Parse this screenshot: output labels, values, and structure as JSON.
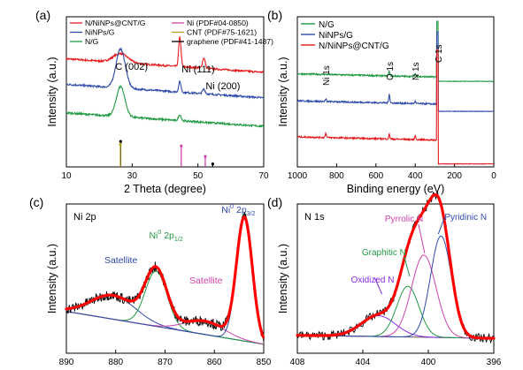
{
  "chart_data": [
    {
      "panel": "(a)",
      "type": "line",
      "xlabel": "2 Theta (degree)",
      "ylabel": "Intensity (a.u.)",
      "xlim": [
        10,
        70
      ],
      "xticks": [
        "10",
        "30",
        "50",
        "70"
      ],
      "legend": [
        {
          "name": "N/NiNPs@CNT/G",
          "color": "#e41a1c",
          "style": "line"
        },
        {
          "name": "Ni (PDF#04-0850)",
          "color": "#cc44aa",
          "style": "line"
        },
        {
          "name": "NiNPs/G",
          "color": "#2e4aa8",
          "style": "line"
        },
        {
          "name": "CNT (PDF#75-1621)",
          "color": "#b8a020",
          "style": "line"
        },
        {
          "name": "N/G",
          "color": "#229944",
          "style": "line"
        },
        {
          "name": "graphene (PDF#41-1487)",
          "color": "#000000",
          "style": "line"
        }
      ],
      "annotations": [
        {
          "text": "C (002)",
          "x": 26.5
        },
        {
          "text": "Ni (111)",
          "x": 44.5
        },
        {
          "text": "Ni (200)",
          "x": 51.8
        }
      ],
      "series": [
        {
          "name": "N/NiNPs@CNT/G",
          "color": "#e41a1c",
          "baseline": 0.72,
          "peaks": [
            [
              26.5,
              0.06,
              2.2
            ],
            [
              44.5,
              0.2,
              0.35
            ],
            [
              51.8,
              0.07,
              0.4
            ]
          ]
        },
        {
          "name": "NiNPs/G",
          "color": "#2e4aa8",
          "baseline": 0.55,
          "peaks": [
            [
              26.5,
              0.26,
              1.4
            ],
            [
              44.5,
              0.07,
              0.35
            ],
            [
              51.8,
              0.03,
              0.4
            ]
          ]
        },
        {
          "name": "N/G",
          "color": "#229944",
          "baseline": 0.36,
          "peaks": [
            [
              26.5,
              0.2,
              1.3
            ],
            [
              44.5,
              0.04,
              0.4
            ]
          ]
        }
      ],
      "reference_sticks": [
        {
          "name": "graphene (PDF#41-1487)",
          "color": "#000000",
          "x": [
            26.5,
            54.5
          ],
          "h": [
            0.17,
            0.02
          ]
        },
        {
          "name": "CNT (PDF#75-1621)",
          "color": "#b8a020",
          "x": [
            26.2
          ],
          "h": [
            0.15
          ]
        },
        {
          "name": "Ni (PDF#04-0850)",
          "color": "#cc44aa",
          "x": [
            44.5,
            51.8
          ],
          "h": [
            0.14,
            0.07
          ]
        }
      ]
    },
    {
      "panel": "(b)",
      "type": "line",
      "xlabel": "Binding energy (eV)",
      "ylabel": "Intensity (a.u.)",
      "xlim": [
        1000,
        0
      ],
      "xticks": [
        "1000",
        "800",
        "600",
        "400",
        "200",
        "0"
      ],
      "legend": [
        {
          "name": "N/G",
          "color": "#229944"
        },
        {
          "name": "NiNPs/G",
          "color": "#2e4aa8"
        },
        {
          "name": "N/NiNPs@CNT/G",
          "color": "#e41a1c"
        }
      ],
      "annotations": [
        {
          "text": "Ni 1s",
          "x": 855
        },
        {
          "text": "O 1s",
          "x": 532
        },
        {
          "text": "N 1s",
          "x": 400
        },
        {
          "text": "C 1s",
          "x": 284
        }
      ],
      "series": [
        {
          "name": "N/G",
          "color": "#229944",
          "baseline": 0.62,
          "c1s": 0.97,
          "after": 0.57,
          "peaks": [
            [
              532,
              0.03
            ],
            [
              400,
              0.02
            ]
          ]
        },
        {
          "name": "NiNPs/G",
          "color": "#2e4aa8",
          "baseline": 0.44,
          "c1s": 0.9,
          "after": 0.37,
          "peaks": [
            [
              855,
              0.015
            ],
            [
              532,
              0.06
            ],
            [
              400,
              0.015
            ]
          ]
        },
        {
          "name": "N/NiNPs@CNT/G",
          "color": "#e41a1c",
          "baseline": 0.2,
          "c1s": 0.78,
          "after": 0.02,
          "peaks": [
            [
              855,
              0.03
            ],
            [
              532,
              0.03
            ],
            [
              400,
              0.025
            ]
          ]
        }
      ]
    },
    {
      "panel": "(c)",
      "type": "line",
      "title": "Ni 2p",
      "xlabel": "Binding energy (eV)",
      "ylabel": "Intensity (a.u.)",
      "xlim": [
        890,
        850
      ],
      "xticks": [
        "890",
        "880",
        "870",
        "860",
        "850"
      ],
      "annotations": [
        {
          "text": "Satellite",
          "x": 880.5
        },
        {
          "text": "Ni",
          "sup": "0",
          "rest": " 2p",
          "sub": "1/2",
          "x": 871.8
        },
        {
          "text": "Ni",
          "sup": "0",
          "rest": " 2p",
          "sub": "3/2",
          "x": 853.9
        },
        {
          "text": "Satellite",
          "x": 862
        }
      ],
      "peaks": [
        {
          "name": "Satellite",
          "center": 880.5,
          "height": 0.16,
          "width": 4.5,
          "color": "#2e4aa8"
        },
        {
          "name": "Ni0 2p1/2",
          "center": 871.8,
          "height": 0.37,
          "width": 2.2,
          "color": "#229944"
        },
        {
          "name": "Satellite",
          "center": 862.0,
          "height": 0.09,
          "width": 4.0,
          "color": "#cc44aa"
        },
        {
          "name": "Ni0 2p3/2",
          "center": 853.9,
          "height": 0.82,
          "width": 1.6,
          "color": "#2e4aa8"
        }
      ],
      "background": [
        [
          890,
          0.22
        ],
        [
          850,
          0.0
        ]
      ],
      "fit_color": "#ff0000",
      "raw_color": "#000000"
    },
    {
      "panel": "(d)",
      "type": "line",
      "title": "N 1s",
      "xlabel": "Binding energy (eV)",
      "ylabel": "Intensity (a.u.)",
      "xlim": [
        410,
        394
      ],
      "xticks": [
        "408",
        "404",
        "400",
        "396"
      ],
      "annotations": [
        {
          "text": "Oxidized N",
          "x": 403.4
        },
        {
          "text": "Graphitic N",
          "x": 401.0
        },
        {
          "text": "Pyrrolic N",
          "x": 399.7
        },
        {
          "text": "Pyridinic N",
          "x": 398.3
        }
      ],
      "peaks": [
        {
          "name": "Oxidized N",
          "center": 403.4,
          "height": 0.14,
          "width": 1.4,
          "color": "#8a2be2"
        },
        {
          "name": "Graphitic N",
          "center": 401.0,
          "height": 0.34,
          "width": 0.9,
          "color": "#229944"
        },
        {
          "name": "Pyrrolic N",
          "center": 399.7,
          "height": 0.55,
          "width": 1.0,
          "color": "#cc44aa"
        },
        {
          "name": "Pyridinic N",
          "center": 398.3,
          "height": 0.68,
          "width": 0.85,
          "color": "#2e4aa8"
        }
      ],
      "background": [
        [
          410,
          0.06
        ],
        [
          394,
          0.04
        ]
      ],
      "fit_color": "#ff0000",
      "raw_color": "#000000"
    }
  ]
}
